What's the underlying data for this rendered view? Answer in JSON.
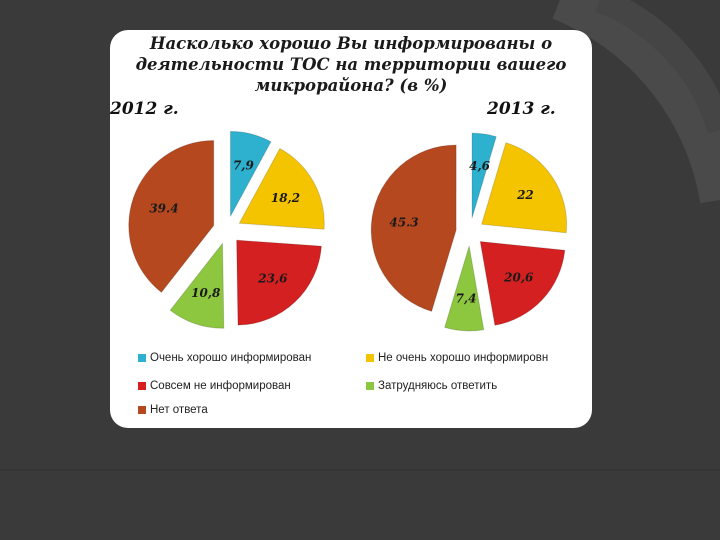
{
  "slide": {
    "title": "Насколько хорошо Вы информированы о деятельности ТОС на территории вашего микрорайона? (в %)"
  },
  "colors": {
    "background": "#3a3a3a",
    "card": "#ffffff"
  },
  "chart_data": [
    {
      "type": "pie",
      "year_label": "2012 г.",
      "categories": [
        "Очень хорошо информирован",
        "Не очень хорошо информировн",
        "Совсем не информирован",
        "Затрудняюсь ответить",
        "Нет ответа"
      ],
      "values": [
        7.9,
        18.2,
        23.6,
        10.8,
        39.4
      ],
      "value_labels": [
        "7,9",
        "18,2",
        "23,6",
        "10,8",
        "39.4"
      ],
      "colors": [
        "#2eb0cf",
        "#f5c400",
        "#d42020",
        "#8dc63f",
        "#b5481f"
      ],
      "exploded": true
    },
    {
      "type": "pie",
      "year_label": "2013 г.",
      "categories": [
        "Очень хорошо информирован",
        "Не очень хорошо информировн",
        "Совсем не информирован",
        "Затрудняюсь ответить",
        "Нет ответа"
      ],
      "values": [
        4.6,
        22,
        20.6,
        7.4,
        45.3
      ],
      "value_labels": [
        "4,6",
        "22",
        "20,6",
        "7,4",
        "45.3"
      ],
      "colors": [
        "#2eb0cf",
        "#f5c400",
        "#d42020",
        "#8dc63f",
        "#b5481f"
      ],
      "exploded": true
    }
  ],
  "legend": {
    "items": [
      {
        "label": "Очень хорошо информирован",
        "color": "#2eb0cf"
      },
      {
        "label": "Не очень хорошо информировн",
        "color": "#f5c400"
      },
      {
        "label": "Совсем не информирован",
        "color": "#d42020"
      },
      {
        "label": "Затрудняюсь ответить",
        "color": "#8dc63f"
      },
      {
        "label": "Нет ответа",
        "color": "#b5481f"
      }
    ]
  }
}
